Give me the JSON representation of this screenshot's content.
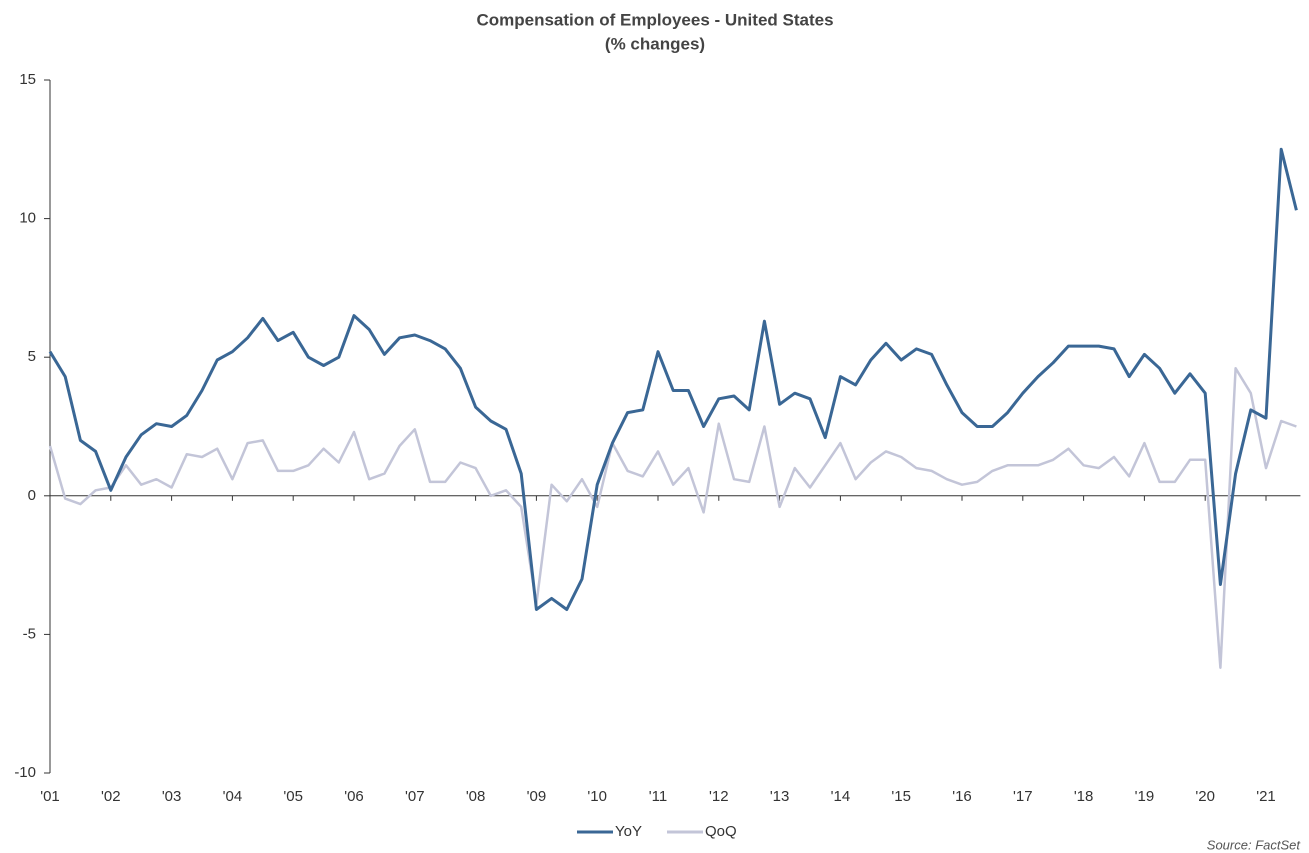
{
  "chart_data": {
    "type": "line",
    "title": "Compensation of Employees - United States",
    "subtitle": "(% changes)",
    "source": "Source: FactSet",
    "categories": [
      "'01",
      null,
      null,
      null,
      "'02",
      null,
      null,
      null,
      "'03",
      null,
      null,
      null,
      "'04",
      null,
      null,
      null,
      "'05",
      null,
      null,
      null,
      "'06",
      null,
      null,
      null,
      "'07",
      null,
      null,
      null,
      "'08",
      null,
      null,
      null,
      "'09",
      null,
      null,
      null,
      "'10",
      null,
      null,
      null,
      "'11",
      null,
      null,
      null,
      "'12",
      null,
      null,
      null,
      "'13",
      null,
      null,
      null,
      "'14",
      null,
      null,
      null,
      "'15",
      null,
      null,
      null,
      "'16",
      null,
      null,
      null,
      "'17",
      null,
      null,
      null,
      "'18",
      null,
      null,
      null,
      "'19",
      null,
      null,
      null,
      "'20",
      null,
      null,
      null,
      "'21",
      null,
      null
    ],
    "series": [
      {
        "name": "YoY",
        "color": "#3a6795",
        "values": [
          5.2,
          4.3,
          2.0,
          1.6,
          0.2,
          1.4,
          2.2,
          2.6,
          2.5,
          2.9,
          3.8,
          4.9,
          5.2,
          5.7,
          6.4,
          5.6,
          5.9,
          5.0,
          4.7,
          5.0,
          6.5,
          6.0,
          5.1,
          5.7,
          5.8,
          5.6,
          5.3,
          4.6,
          3.2,
          2.7,
          2.4,
          0.8,
          -4.1,
          -3.7,
          -4.1,
          -3.0,
          0.4,
          1.9,
          3.0,
          3.1,
          5.2,
          3.8,
          3.8,
          2.5,
          3.5,
          3.6,
          3.1,
          6.3,
          3.3,
          3.7,
          3.5,
          2.1,
          4.3,
          4.0,
          4.9,
          5.5,
          4.9,
          5.3,
          5.1,
          4.0,
          3.0,
          2.5,
          2.5,
          3.0,
          3.7,
          4.3,
          4.8,
          5.4,
          5.4,
          5.4,
          5.3,
          4.3,
          5.1,
          4.6,
          3.7,
          4.4,
          3.7,
          -3.2,
          0.8,
          3.1,
          2.8,
          12.5,
          10.3
        ]
      },
      {
        "name": "QoQ",
        "color": "#c3c5d8",
        "values": [
          1.8,
          -0.1,
          -0.3,
          0.2,
          0.3,
          1.1,
          0.4,
          0.6,
          0.3,
          1.5,
          1.4,
          1.7,
          0.6,
          1.9,
          2.0,
          0.9,
          0.9,
          1.1,
          1.7,
          1.2,
          2.3,
          0.6,
          0.8,
          1.8,
          2.4,
          0.5,
          0.5,
          1.2,
          1.0,
          0.0,
          0.2,
          -0.4,
          -3.9,
          0.4,
          -0.2,
          0.6,
          -0.4,
          1.9,
          0.9,
          0.7,
          1.6,
          0.4,
          1.0,
          -0.6,
          2.6,
          0.6,
          0.5,
          2.5,
          -0.4,
          1.0,
          0.3,
          1.1,
          1.9,
          0.6,
          1.2,
          1.6,
          1.4,
          1.0,
          0.9,
          0.6,
          0.4,
          0.5,
          0.9,
          1.1,
          1.1,
          1.1,
          1.3,
          1.7,
          1.1,
          1.0,
          1.4,
          0.7,
          1.9,
          0.5,
          0.5,
          1.3,
          1.3,
          -6.2,
          4.6,
          3.7,
          1.0,
          2.7,
          2.5
        ]
      }
    ],
    "ylim": [
      -10,
      15
    ],
    "yticks": [
      -10,
      -5,
      0,
      5,
      10,
      15
    ],
    "legend": "bottom"
  }
}
